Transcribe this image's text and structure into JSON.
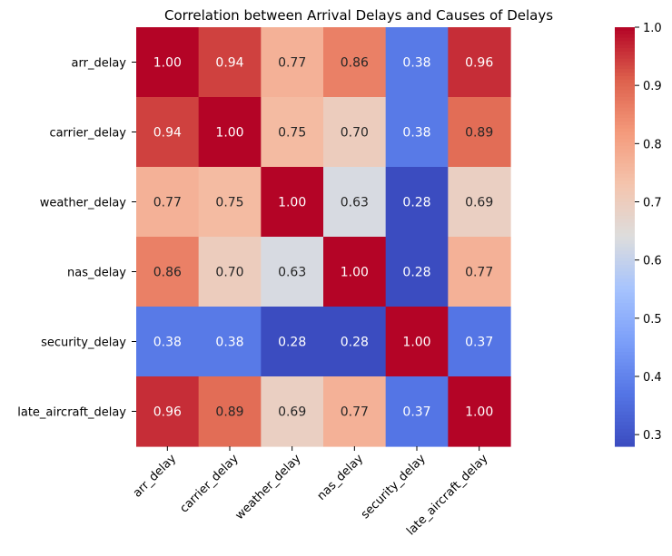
{
  "chart_data": {
    "type": "heatmap",
    "title": "Correlation between Arrival Delays and Causes of Delays",
    "xlabel": "",
    "ylabel": "",
    "x_labels": [
      "arr_delay",
      "carrier_delay",
      "weather_delay",
      "nas_delay",
      "security_delay",
      "late_aircraft_delay"
    ],
    "y_labels": [
      "arr_delay",
      "carrier_delay",
      "weather_delay",
      "nas_delay",
      "security_delay",
      "late_aircraft_delay"
    ],
    "values": [
      [
        1.0,
        0.94,
        0.77,
        0.86,
        0.38,
        0.96
      ],
      [
        0.94,
        1.0,
        0.75,
        0.7,
        0.38,
        0.89
      ],
      [
        0.77,
        0.75,
        1.0,
        0.63,
        0.28,
        0.69
      ],
      [
        0.86,
        0.7,
        0.63,
        1.0,
        0.28,
        0.77
      ],
      [
        0.38,
        0.38,
        0.28,
        0.28,
        1.0,
        0.37
      ],
      [
        0.96,
        0.89,
        0.69,
        0.77,
        0.37,
        1.0
      ]
    ],
    "annotation_format": "0.00",
    "colormap": "coolwarm",
    "colorbar": {
      "range": [
        0.28,
        1.0
      ],
      "ticks": [
        0.3,
        0.4,
        0.5,
        0.6,
        0.7,
        0.8,
        0.9,
        1.0
      ]
    }
  }
}
